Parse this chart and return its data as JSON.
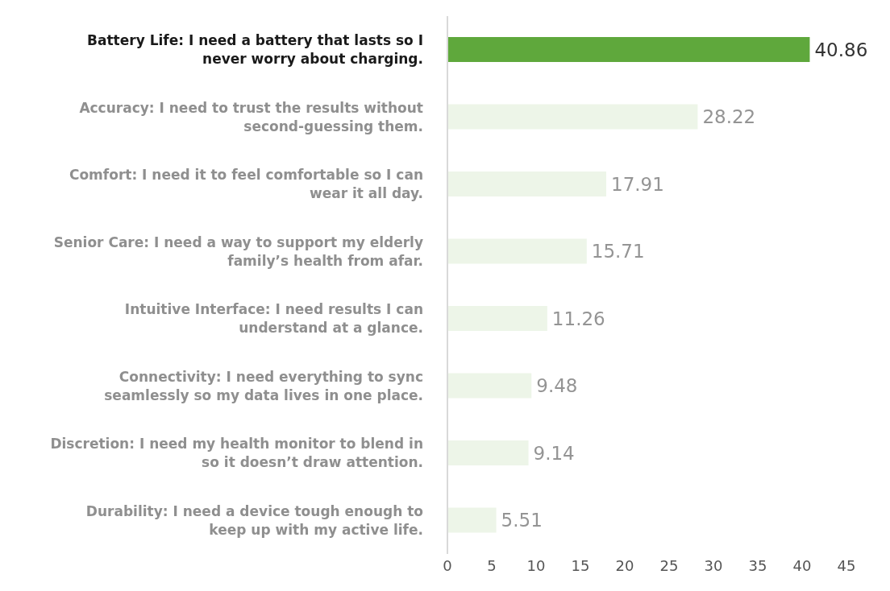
{
  "chart_data": {
    "type": "bar",
    "orientation": "horizontal",
    "categories": [
      "Battery Life: I need a battery that lasts so I never worry about charging.",
      "Accuracy:  I need to trust the results without second-guessing them.",
      "Comfort: I need it to feel comfortable so I can wear it all day.",
      "Senior Care: I need a way to support my elderly family’s health from afar.",
      "Intuitive Interface: I need results I can understand at a glance.",
      "Connectivity: I need everything to sync seamlessly so my data lives in one place.",
      "Discretion: I need my health monitor to blend in so it doesn’t draw attention.",
      "Durability: I need a device tough enough to keep up with my active life."
    ],
    "values": [
      40.86,
      28.22,
      17.91,
      15.71,
      11.26,
      9.48,
      9.14,
      5.51
    ],
    "colors": [
      "#5fa83c",
      "#edf5e8",
      "#edf5e8",
      "#edf5e8",
      "#edf5e8",
      "#edf5e8",
      "#edf5e8",
      "#edf5e8"
    ],
    "xlim": [
      0,
      45
    ],
    "xticks": [
      0,
      5,
      10,
      15,
      20,
      25,
      30,
      35,
      40,
      45
    ],
    "data_labels": true,
    "grid": false,
    "legend": false
  }
}
